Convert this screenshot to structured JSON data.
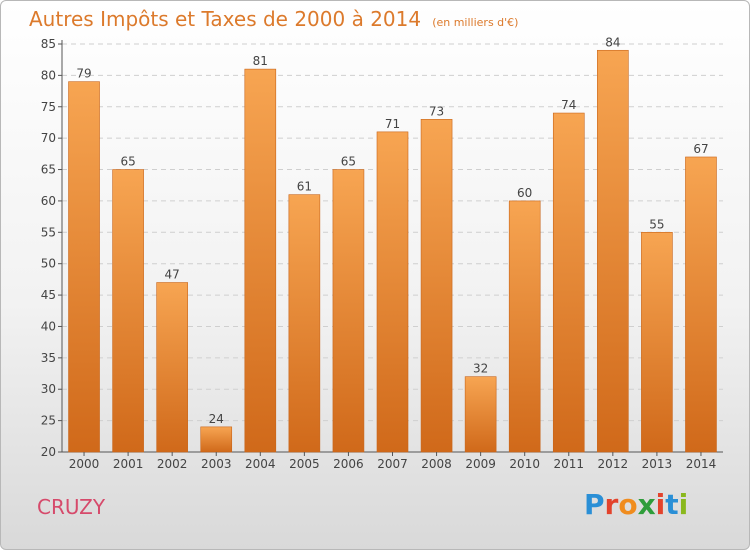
{
  "title": {
    "main": "Autres Impôts et Taxes de 2000 à 2014",
    "unit": "(en milliers d'€)"
  },
  "commune": "CRUZY",
  "logo": {
    "letters": [
      "P",
      "r",
      "o",
      "x",
      "i",
      "t",
      "i"
    ],
    "colors": [
      "#2a8fd6",
      "#e3432c",
      "#f08c1e",
      "#2e9d3a",
      "#e3432c",
      "#2a8fd6",
      "#8ab81d"
    ]
  },
  "colors": {
    "bar_top": "#f7a552",
    "bar_bottom": "#d0691a",
    "title": "#dc7a2c",
    "commune": "#d64a6b"
  },
  "chart_data": {
    "type": "bar",
    "title": "Autres Impôts et Taxes de 2000 à 2014",
    "ylabel": "",
    "xlabel": "",
    "categories": [
      "2000",
      "2001",
      "2002",
      "2003",
      "2004",
      "2005",
      "2006",
      "2007",
      "2008",
      "2009",
      "2010",
      "2011",
      "2012",
      "2013",
      "2014"
    ],
    "values": [
      79,
      65,
      47,
      24,
      81,
      61,
      65,
      71,
      73,
      32,
      60,
      74,
      84,
      55,
      67
    ],
    "ylim": [
      20,
      85
    ],
    "yticks": [
      20,
      25,
      30,
      35,
      40,
      45,
      50,
      55,
      60,
      65,
      70,
      75,
      80,
      85
    ],
    "grid": true,
    "legend": "none"
  }
}
